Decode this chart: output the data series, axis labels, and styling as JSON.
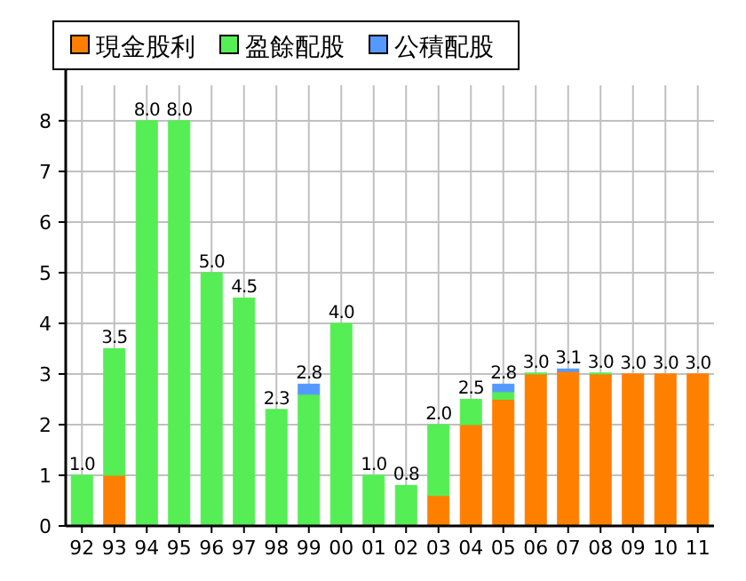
{
  "chart_data": {
    "type": "bar",
    "stacked": true,
    "legend": "top",
    "grid": true,
    "categories": [
      "92",
      "93",
      "94",
      "95",
      "96",
      "97",
      "98",
      "99",
      "00",
      "01",
      "02",
      "03",
      "04",
      "05",
      "06",
      "07",
      "08",
      "09",
      "10",
      "11"
    ],
    "series": [
      {
        "name": "現金股利",
        "color": "#ff7f00",
        "values": [
          0,
          1.0,
          0,
          0,
          0,
          0,
          0,
          0,
          0,
          0,
          0,
          0.6,
          2.0,
          2.5,
          3.0,
          3.05,
          3.0,
          3.0,
          3.0,
          3.0
        ]
      },
      {
        "name": "盈餘配股",
        "color": "#55ee55",
        "values": [
          1.0,
          2.5,
          8.0,
          8.0,
          5.0,
          4.5,
          2.3,
          2.6,
          4.0,
          1.0,
          0.8,
          1.4,
          0.5,
          0.15,
          0.02,
          0,
          0.02,
          0,
          0,
          0
        ]
      },
      {
        "name": "公積配股",
        "color": "#5599ff",
        "values": [
          0,
          0,
          0,
          0,
          0,
          0,
          0,
          0.2,
          0,
          0,
          0,
          0,
          0,
          0.15,
          0,
          0.05,
          0,
          0,
          0,
          0
        ]
      }
    ],
    "totals": [
      "1.0",
      "3.5",
      "8.0",
      "8.0",
      "5.0",
      "4.5",
      "2.3",
      "2.8",
      "4.0",
      "1.0",
      "0.8",
      "2.0",
      "2.5",
      "2.8",
      "3.0",
      "3.1",
      "3.0",
      "3.0",
      "3.0",
      "3.0"
    ],
    "ylim": [
      0,
      8.7
    ],
    "yticks": [
      0,
      1,
      2,
      3,
      4,
      5,
      6,
      7,
      8
    ]
  }
}
